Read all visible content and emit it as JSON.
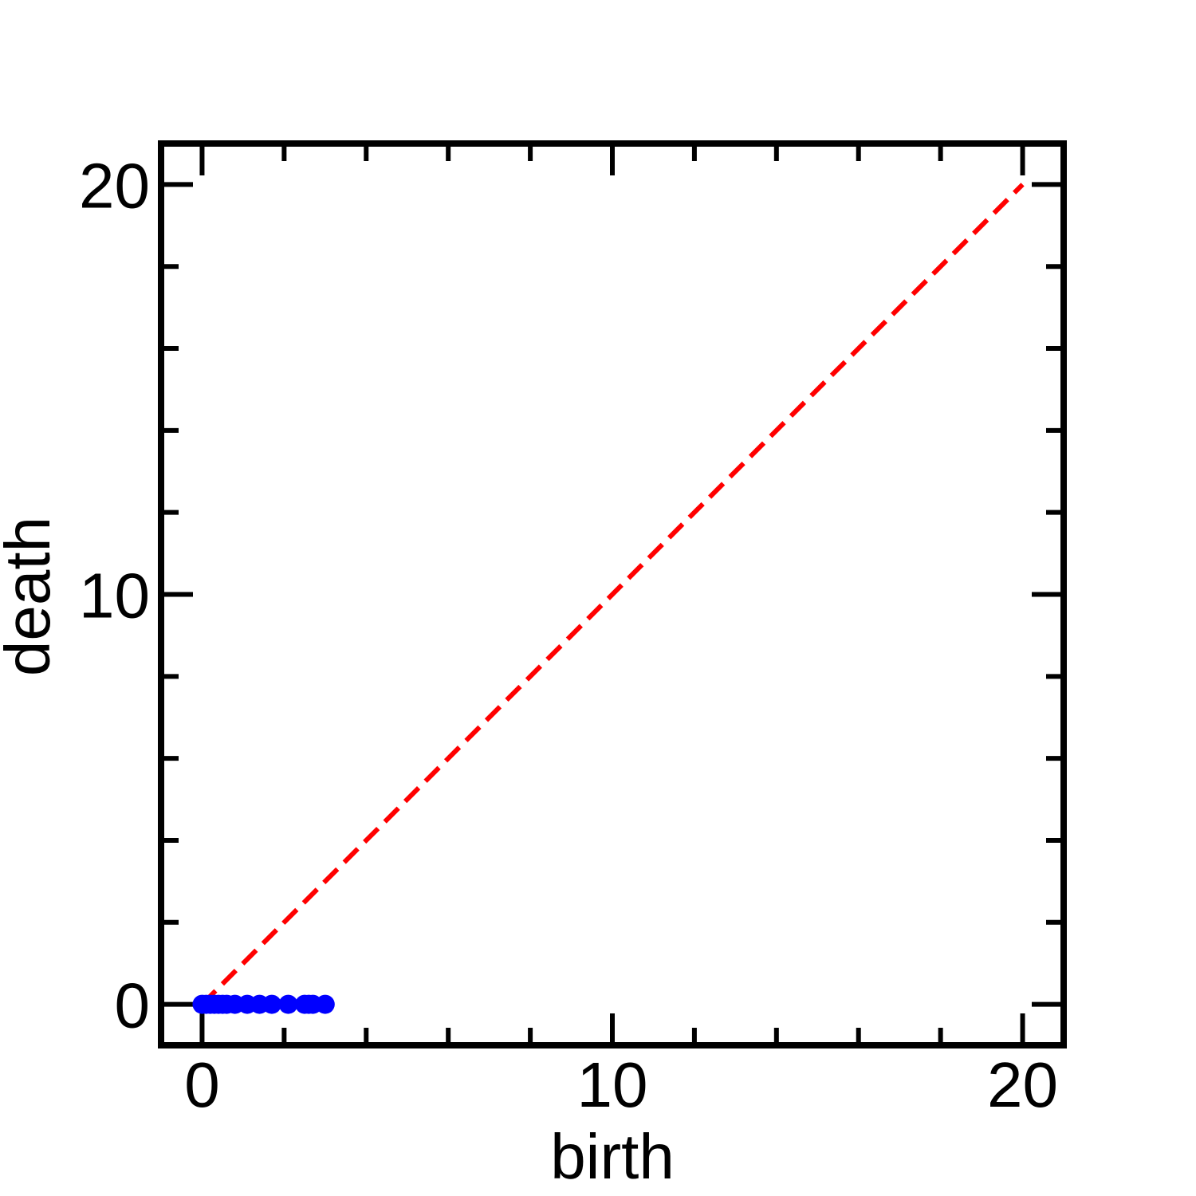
{
  "chart_data": {
    "type": "scatter",
    "title": "",
    "xlabel": "birth",
    "ylabel": "death",
    "xlim": [
      -1,
      21
    ],
    "ylim": [
      -1,
      21
    ],
    "major_ticks": [
      0,
      10,
      20
    ],
    "minor_tick_step": 2,
    "grid": false,
    "legend": "none",
    "series": [
      {
        "marker": "circle",
        "color": "#0000ff",
        "points": [
          {
            "x": 0.0,
            "y": 0
          },
          {
            "x": 0.1,
            "y": 0
          },
          {
            "x": 0.2,
            "y": 0
          },
          {
            "x": 0.3,
            "y": 0
          },
          {
            "x": 0.4,
            "y": 0
          },
          {
            "x": 0.5,
            "y": 0
          },
          {
            "x": 0.6,
            "y": 0
          },
          {
            "x": 0.8,
            "y": 0
          },
          {
            "x": 1.1,
            "y": 0
          },
          {
            "x": 1.4,
            "y": 0
          },
          {
            "x": 1.7,
            "y": 0
          },
          {
            "x": 2.1,
            "y": 0
          },
          {
            "x": 2.5,
            "y": 0
          },
          {
            "x": 2.6,
            "y": 0
          },
          {
            "x": 2.7,
            "y": 0
          },
          {
            "x": 3.0,
            "y": 0
          }
        ]
      }
    ],
    "reference_line": {
      "style": "dashed",
      "color": "#ff0000",
      "from": [
        0,
        0
      ],
      "to": [
        20,
        20
      ]
    }
  }
}
